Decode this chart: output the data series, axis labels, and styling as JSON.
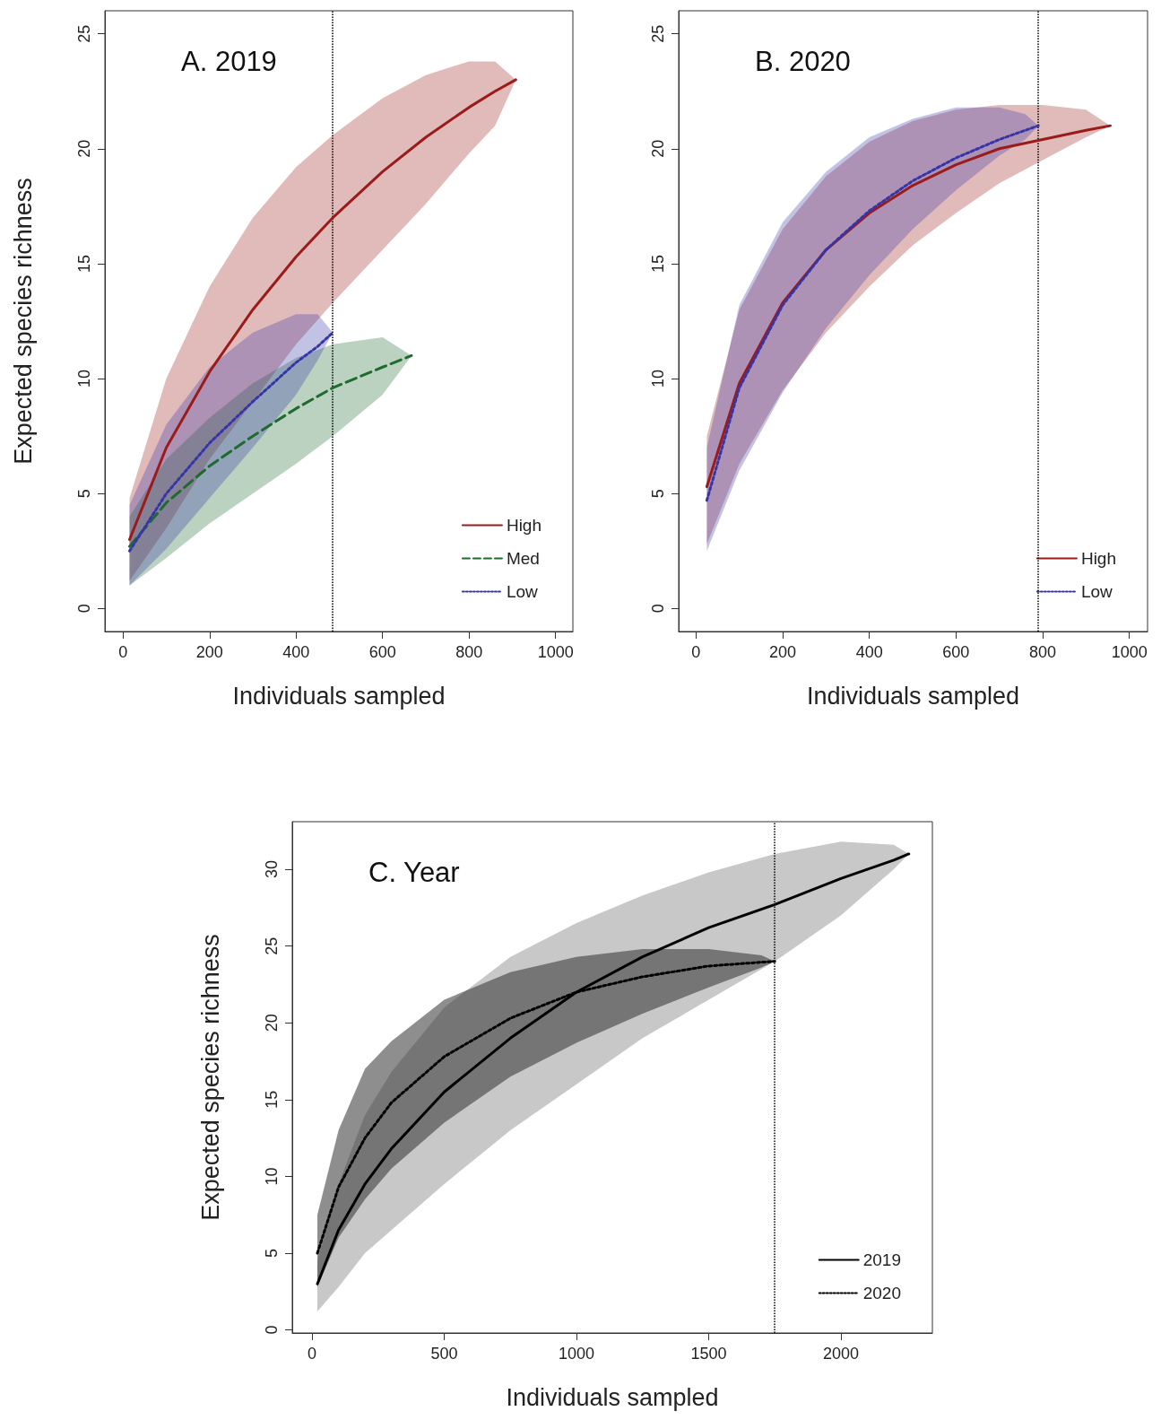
{
  "chart_data": [
    {
      "type": "line",
      "title": "A. 2019",
      "xlabel": "Individuals sampled",
      "ylabel": "Expected species richness",
      "xlim": [
        -42,
        1040
      ],
      "ylim": [
        -1,
        26
      ],
      "xticks": [
        0,
        200,
        400,
        600,
        800,
        1000
      ],
      "yticks": [
        0,
        5,
        10,
        15,
        20,
        25
      ],
      "grid": false,
      "legend": "bottom right",
      "ref_lines": [
        {
          "axis": "x",
          "value": 485,
          "color": "#000000",
          "line_style": "dotted"
        }
      ],
      "series": [
        {
          "name": "High",
          "color": "#9b1b1b",
          "line_style": "solid",
          "x": [
            15,
            100,
            200,
            300,
            400,
            485,
            600,
            700,
            800,
            860,
            908
          ],
          "values": [
            3,
            7,
            10.3,
            13,
            15.3,
            17,
            19,
            20.5,
            21.8,
            22.5,
            23
          ],
          "lower": [
            1.2,
            3.5,
            6.5,
            9,
            11.5,
            13.3,
            15.6,
            17.6,
            19.8,
            21,
            23
          ],
          "upper": [
            4.8,
            10,
            14,
            17,
            19.2,
            20.6,
            22.2,
            23.2,
            23.8,
            23.8,
            23
          ]
        },
        {
          "name": "Med",
          "color": "#1f6b2f",
          "line_style": "dashed",
          "x": [
            15,
            100,
            200,
            300,
            400,
            485,
            600,
            667
          ],
          "values": [
            2.7,
            4.6,
            6.2,
            7.5,
            8.7,
            9.6,
            10.5,
            11
          ],
          "lower": [
            1,
            2.2,
            3.7,
            5,
            6.3,
            7.5,
            9.3,
            11
          ],
          "upper": [
            4,
            6.5,
            8.3,
            9.8,
            10.9,
            11.5,
            11.8,
            11
          ]
        },
        {
          "name": "Low",
          "color": "#3535a8",
          "line_style": "dotted",
          "x": [
            15,
            100,
            200,
            300,
            400,
            450,
            485
          ],
          "values": [
            2.5,
            5,
            7.2,
            9,
            10.7,
            11.4,
            12
          ],
          "lower": [
            1,
            2.6,
            4.8,
            7,
            9.3,
            10.8,
            12
          ],
          "upper": [
            4.5,
            8,
            10.5,
            12,
            12.8,
            12.8,
            12
          ]
        }
      ]
    },
    {
      "type": "line",
      "title": "B. 2020",
      "xlabel": "Individuals sampled",
      "xlim": [
        -40,
        1042
      ],
      "ylim": [
        -1,
        26
      ],
      "xticks": [
        0,
        200,
        400,
        600,
        800,
        1000
      ],
      "yticks": [
        0,
        5,
        10,
        15,
        20,
        25
      ],
      "grid": false,
      "legend": "bottom right",
      "ref_lines": [
        {
          "axis": "x",
          "value": 790,
          "color": "#000000",
          "line_style": "dotted"
        }
      ],
      "series": [
        {
          "name": "High",
          "color": "#9b1b1b",
          "line_style": "solid",
          "x": [
            25,
            100,
            200,
            300,
            400,
            500,
            600,
            700,
            800,
            900,
            956
          ],
          "values": [
            5.3,
            9.8,
            13.3,
            15.6,
            17.2,
            18.4,
            19.3,
            20,
            20.4,
            20.8,
            21
          ],
          "lower": [
            2.8,
            6.3,
            9.5,
            12,
            14,
            15.8,
            17.2,
            18.5,
            19.5,
            20.5,
            21
          ],
          "upper": [
            7.5,
            13,
            16.5,
            18.8,
            20.3,
            21.2,
            21.7,
            21.9,
            21.9,
            21.7,
            21
          ]
        },
        {
          "name": "Low",
          "color": "#3535a8",
          "line_style": "dotted",
          "x": [
            25,
            100,
            200,
            300,
            400,
            500,
            600,
            700,
            760,
            790
          ],
          "values": [
            4.7,
            9.6,
            13.2,
            15.6,
            17.3,
            18.6,
            19.6,
            20.4,
            20.8,
            21
          ],
          "lower": [
            2.5,
            6,
            9.4,
            12.2,
            14.5,
            16.5,
            18.2,
            19.7,
            20.4,
            21
          ],
          "upper": [
            7,
            13.2,
            16.8,
            19,
            20.5,
            21.3,
            21.8,
            21.8,
            21.5,
            21
          ]
        }
      ]
    },
    {
      "type": "line",
      "title": "C. Year",
      "xlabel": "Individuals sampled",
      "ylabel": "Expected species richness",
      "xlim": [
        -75,
        2346
      ],
      "ylim": [
        -0.2,
        33.1
      ],
      "xticks": [
        0,
        500,
        1000,
        1500,
        2000
      ],
      "yticks": [
        0,
        5,
        10,
        15,
        20,
        25,
        30
      ],
      "grid": false,
      "legend": "bottom right",
      "ref_lines": [
        {
          "axis": "x",
          "value": 1750,
          "color": "#000000",
          "line_style": "dotted"
        }
      ],
      "series": [
        {
          "name": "2019",
          "color": "#000000",
          "line_style": "solid",
          "x": [
            20,
            100,
            200,
            300,
            500,
            750,
            1000,
            1250,
            1500,
            1750,
            2000,
            2200,
            2257
          ],
          "values": [
            3,
            6.5,
            9.5,
            11.8,
            15.5,
            19,
            22,
            24.3,
            26.2,
            27.7,
            29.4,
            30.6,
            31
          ],
          "lower": [
            1.2,
            2.8,
            5,
            6.5,
            9.5,
            13,
            16,
            19,
            21.5,
            24,
            27,
            30,
            31
          ],
          "upper": [
            4.5,
            9.5,
            14,
            16.8,
            21,
            24.3,
            26.5,
            28.3,
            29.8,
            31,
            31.8,
            31.6,
            31
          ]
        },
        {
          "name": "2020",
          "color": "#000000",
          "line_style": "dotted",
          "x": [
            20,
            100,
            200,
            300,
            500,
            750,
            1000,
            1250,
            1500,
            1700,
            1750
          ],
          "values": [
            5,
            9.3,
            12.5,
            14.8,
            17.8,
            20.3,
            22,
            23,
            23.7,
            23.95,
            24
          ],
          "lower": [
            2.8,
            6,
            8.5,
            10.5,
            13.5,
            16.5,
            18.7,
            20.6,
            22.3,
            23.6,
            24
          ],
          "upper": [
            7.5,
            13,
            17,
            18.8,
            21.5,
            23.3,
            24.3,
            24.8,
            24.8,
            24.4,
            24
          ]
        }
      ]
    }
  ]
}
